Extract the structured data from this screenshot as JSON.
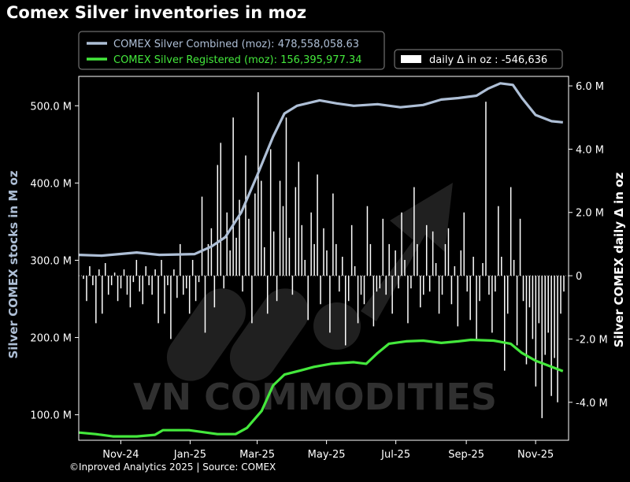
{
  "title": "Comex Silver inventories in moz",
  "footer": "©Inproved Analytics 2025 | Source: COMEX",
  "watermark": "VN COMMODITIES",
  "colors": {
    "combined": "#aebfd6",
    "registered": "#44e83c",
    "bars": "#ffffff",
    "background": "#000000"
  },
  "legend": {
    "combined": "COMEX Silver Combined (moz): 478,558,058.63",
    "registered": "COMEX Silver Registered (moz): 156,395,977.34",
    "daily": "daily Δ in oz : -546,636"
  },
  "chart_data": {
    "type": "line",
    "title": "Comex Silver inventories in moz",
    "xlabel": "",
    "ylabel": "Silver COMEX stocks in M oz",
    "y2label": "Silver COMEX daily Δ in oz",
    "x_ticks": [
      "Nov-24",
      "Jan-25",
      "Mar-25",
      "May-25",
      "Jul-25",
      "Sep-25",
      "Nov-25"
    ],
    "y_ticks": [
      "100.0 M",
      "200.0 M",
      "300.0 M",
      "400.0 M",
      "500.0 M"
    ],
    "y2_ticks": [
      "-4.0 M",
      "-2.0 M",
      "0",
      "2.0 M",
      "4.0 M",
      "6.0 M"
    ],
    "x_range": [
      "2024-09-25",
      "2025-11-30"
    ],
    "ylim": [
      67,
      538
    ],
    "y2lim": [
      -5.2,
      6.3
    ],
    "grid": false,
    "legend_position": "top",
    "series": [
      {
        "name": "COMEX Silver Combined (moz)",
        "axis": "left",
        "points": [
          [
            "2024-09-25",
            307
          ],
          [
            "2024-10-15",
            306
          ],
          [
            "2024-11-15",
            310
          ],
          [
            "2024-12-05",
            307
          ],
          [
            "2025-01-05",
            308
          ],
          [
            "2025-01-20",
            318
          ],
          [
            "2025-02-01",
            330
          ],
          [
            "2025-02-15",
            362
          ],
          [
            "2025-03-01",
            410
          ],
          [
            "2025-03-15",
            460
          ],
          [
            "2025-03-25",
            490
          ],
          [
            "2025-04-05",
            500
          ],
          [
            "2025-04-25",
            507
          ],
          [
            "2025-05-10",
            503
          ],
          [
            "2025-05-25",
            500
          ],
          [
            "2025-06-15",
            502
          ],
          [
            "2025-07-05",
            498
          ],
          [
            "2025-07-25",
            501
          ],
          [
            "2025-08-10",
            508
          ],
          [
            "2025-08-25",
            510
          ],
          [
            "2025-09-10",
            513
          ],
          [
            "2025-09-20",
            522
          ],
          [
            "2025-10-01",
            529
          ],
          [
            "2025-10-12",
            527
          ],
          [
            "2025-10-20",
            510
          ],
          [
            "2025-11-01",
            488
          ],
          [
            "2025-11-15",
            480
          ],
          [
            "2025-11-25",
            478.6
          ]
        ]
      },
      {
        "name": "COMEX Silver Registered (moz)",
        "axis": "left",
        "points": [
          [
            "2024-09-25",
            77
          ],
          [
            "2024-10-10",
            75
          ],
          [
            "2024-10-25",
            72
          ],
          [
            "2024-11-15",
            72
          ],
          [
            "2024-12-01",
            74
          ],
          [
            "2024-12-08",
            80
          ],
          [
            "2024-12-31",
            80
          ],
          [
            "2025-01-10",
            78
          ],
          [
            "2025-01-25",
            75
          ],
          [
            "2025-02-10",
            75
          ],
          [
            "2025-02-20",
            83
          ],
          [
            "2025-03-05",
            105
          ],
          [
            "2025-03-15",
            138
          ],
          [
            "2025-03-25",
            152
          ],
          [
            "2025-04-10",
            158
          ],
          [
            "2025-04-20",
            162
          ],
          [
            "2025-05-05",
            166
          ],
          [
            "2025-05-25",
            168
          ],
          [
            "2025-06-05",
            166
          ],
          [
            "2025-06-15",
            180
          ],
          [
            "2025-06-25",
            192
          ],
          [
            "2025-07-10",
            195
          ],
          [
            "2025-07-25",
            196
          ],
          [
            "2025-08-10",
            193
          ],
          [
            "2025-08-25",
            195
          ],
          [
            "2025-09-05",
            197
          ],
          [
            "2025-09-25",
            196
          ],
          [
            "2025-10-10",
            192
          ],
          [
            "2025-10-20",
            180
          ],
          [
            "2025-11-01",
            170
          ],
          [
            "2025-11-15",
            162
          ],
          [
            "2025-11-25",
            156.4
          ]
        ]
      },
      {
        "name": "daily Δ in oz",
        "type": "bar",
        "axis": "right",
        "values_M": [
          -0.1,
          -0.8,
          0.3,
          -0.3,
          -1.5,
          0.2,
          -1.2,
          0.4,
          -0.6,
          -0.3,
          0.1,
          -0.8,
          -0.4,
          0.2,
          -0.6,
          -1.0,
          -0.2,
          0.5,
          -0.5,
          -0.9,
          0.3,
          -0.3,
          -0.6,
          0.2,
          -1.5,
          0.5,
          -1.2,
          -0.3,
          -2.0,
          0.2,
          -0.7,
          1.0,
          -0.6,
          -0.4,
          -1.2,
          0.5,
          -0.8,
          -0.2,
          2.5,
          -1.8,
          1.0,
          1.5,
          -1.0,
          3.5,
          4.2,
          -0.4,
          2.0,
          0.8,
          5.0,
          1.2,
          2.4,
          -0.5,
          3.8,
          1.8,
          -1.5,
          2.6,
          5.8,
          3.0,
          0.9,
          -1.2,
          4.0,
          1.4,
          -0.8,
          3.0,
          2.2,
          5.0,
          1.2,
          -0.6,
          2.8,
          3.6,
          1.6,
          0.5,
          -1.4,
          2.0,
          1.0,
          3.2,
          -0.9,
          1.5,
          0.8,
          -1.8,
          2.6,
          1.0,
          -0.5,
          0.6,
          -2.2,
          -0.8,
          1.6,
          0.3,
          -1.5,
          -0.6,
          -0.9,
          2.2,
          1.0,
          -1.6,
          -0.5,
          -0.4,
          1.8,
          -0.6,
          1.0,
          -1.2,
          0.8,
          -0.4,
          2.0,
          0.5,
          -1.5,
          -0.4,
          2.8,
          1.0,
          -1.0,
          -0.6,
          1.6,
          -0.5,
          1.4,
          0.4,
          -1.2,
          -0.6,
          1.0,
          1.5,
          -0.9,
          0.3,
          -1.6,
          0.8,
          2.0,
          -0.5,
          -1.4,
          0.6,
          -2.0,
          -0.8,
          0.4,
          5.5,
          -0.6,
          -1.8,
          -0.5,
          2.2,
          0.6,
          -3.0,
          -1.2,
          2.8,
          0.5,
          -2.2,
          1.8,
          -0.8,
          -2.8,
          -1.0,
          -2.0,
          -3.5,
          -1.5,
          -4.5,
          -2.5,
          -1.8,
          -3.8,
          -2.6,
          -4.0,
          -1.2,
          -0.5
        ]
      }
    ]
  }
}
